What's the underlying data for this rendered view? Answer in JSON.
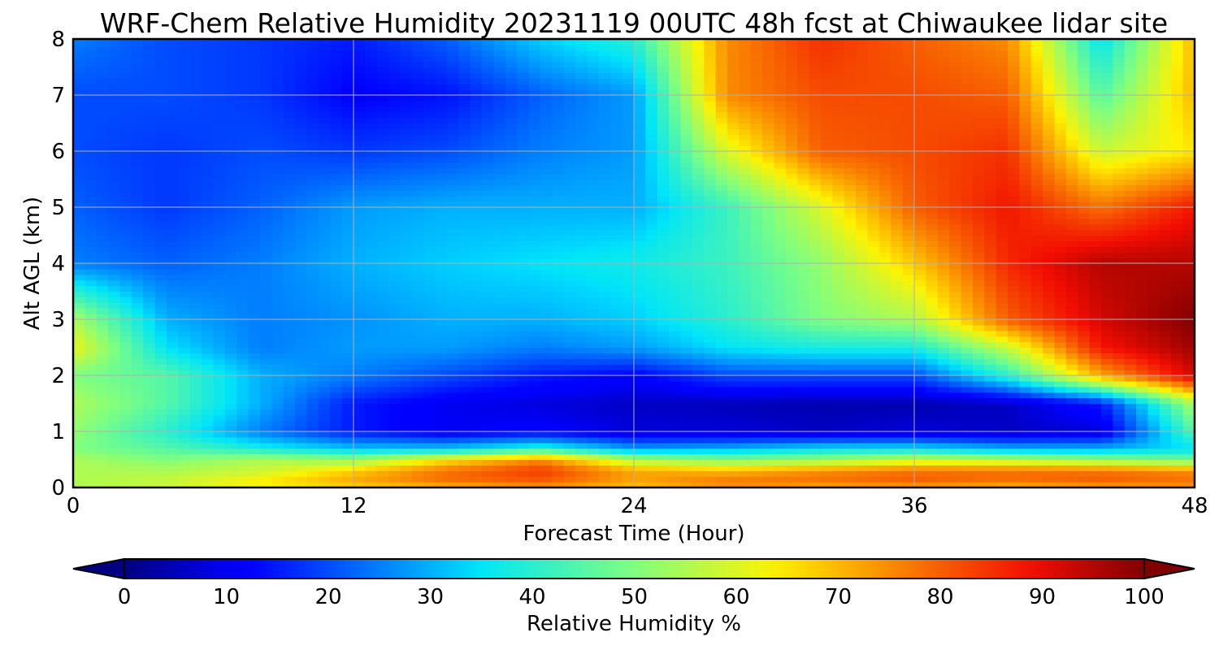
{
  "chart_data": {
    "type": "heatmap",
    "title": "WRF-Chem Relative Humidity 20231119 00UTC 48h fcst at Chiwaukee lidar site",
    "xlabel": "Forecast Time (Hour)",
    "ylabel": "Alt AGL (km)",
    "xlim": [
      0,
      48
    ],
    "ylim": [
      0,
      8
    ],
    "x_ticks": [
      0,
      12,
      24,
      36,
      48
    ],
    "y_ticks": [
      0,
      1,
      2,
      3,
      4,
      5,
      6,
      7,
      8
    ],
    "grid": true,
    "colormap": "jet",
    "colorbar": {
      "label": "Relative Humidity %",
      "range": [
        0,
        100
      ],
      "ticks": [
        0,
        10,
        20,
        30,
        40,
        50,
        60,
        70,
        80,
        90,
        100
      ],
      "extend": "both",
      "orientation": "horizontal"
    },
    "x": [
      0,
      4,
      8,
      12,
      16,
      20,
      24,
      28,
      32,
      36,
      40,
      44,
      48
    ],
    "y": [
      0,
      0.1,
      0.3,
      0.5,
      0.7,
      1,
      1.5,
      2,
      2.5,
      3,
      4,
      5,
      6,
      7,
      8
    ],
    "z": [
      [
        55,
        58,
        62,
        65,
        68,
        72,
        68,
        72,
        70,
        70,
        68,
        70,
        72
      ],
      [
        55,
        58,
        65,
        72,
        78,
        80,
        72,
        78,
        78,
        80,
        78,
        80,
        78
      ],
      [
        55,
        55,
        58,
        68,
        78,
        84,
        72,
        70,
        75,
        78,
        78,
        78,
        75
      ],
      [
        55,
        50,
        55,
        52,
        65,
        75,
        55,
        50,
        52,
        58,
        56,
        52,
        48
      ],
      [
        50,
        45,
        38,
        32,
        32,
        40,
        28,
        30,
        35,
        35,
        30,
        30,
        35
      ],
      [
        52,
        40,
        25,
        15,
        10,
        12,
        8,
        8,
        6,
        8,
        6,
        8,
        45
      ],
      [
        55,
        45,
        30,
        15,
        10,
        8,
        6,
        5,
        4,
        4,
        6,
        15,
        55
      ],
      [
        50,
        45,
        30,
        25,
        20,
        15,
        12,
        20,
        20,
        20,
        40,
        72,
        92
      ],
      [
        62,
        35,
        25,
        28,
        28,
        25,
        28,
        35,
        38,
        38,
        58,
        88,
        97
      ],
      [
        55,
        30,
        25,
        27,
        30,
        30,
        33,
        40,
        50,
        55,
        80,
        92,
        100
      ],
      [
        25,
        22,
        25,
        30,
        33,
        35,
        37,
        42,
        52,
        68,
        86,
        95,
        95
      ],
      [
        22,
        18,
        22,
        28,
        30,
        30,
        30,
        42,
        60,
        80,
        88,
        78,
        88
      ],
      [
        20,
        18,
        20,
        18,
        20,
        25,
        28,
        60,
        80,
        82,
        85,
        58,
        65
      ],
      [
        20,
        20,
        18,
        12,
        14,
        22,
        28,
        75,
        82,
        82,
        80,
        45,
        70
      ],
      [
        25,
        20,
        18,
        15,
        22,
        33,
        40,
        75,
        85,
        80,
        75,
        35,
        70
      ]
    ]
  }
}
